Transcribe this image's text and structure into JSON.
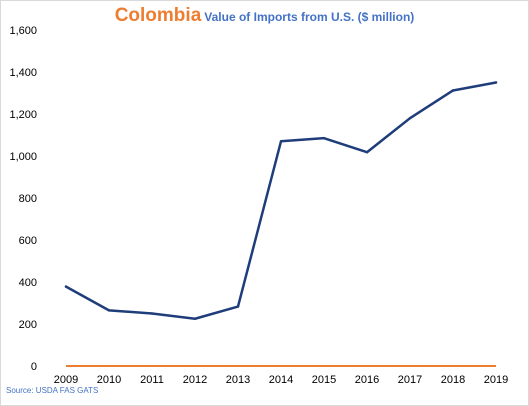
{
  "title": {
    "country": "Colombia",
    "subtitle": "Value of Imports from U.S. ($ million)"
  },
  "source": "Source: USDA FAS GATS",
  "colors": {
    "series_line": "#1f3d7a",
    "zero_line": "#ed7d31",
    "title_accent": "#ed7d31",
    "subtitle": "#4472c4"
  },
  "chart_data": {
    "type": "line",
    "x": [
      "2009",
      "2010",
      "2011",
      "2012",
      "2013",
      "2014",
      "2015",
      "2016",
      "2017",
      "2018",
      "2019"
    ],
    "series": [
      {
        "values": [
          378,
          265,
          250,
          225,
          283,
          1070,
          1085,
          1018,
          1180,
          1312,
          1350
        ]
      }
    ],
    "ylim": [
      0,
      1600
    ],
    "yticks": [
      "0",
      "200",
      "400",
      "600",
      "800",
      "1,000",
      "1,200",
      "1,400",
      "1,600"
    ],
    "grid": false
  }
}
